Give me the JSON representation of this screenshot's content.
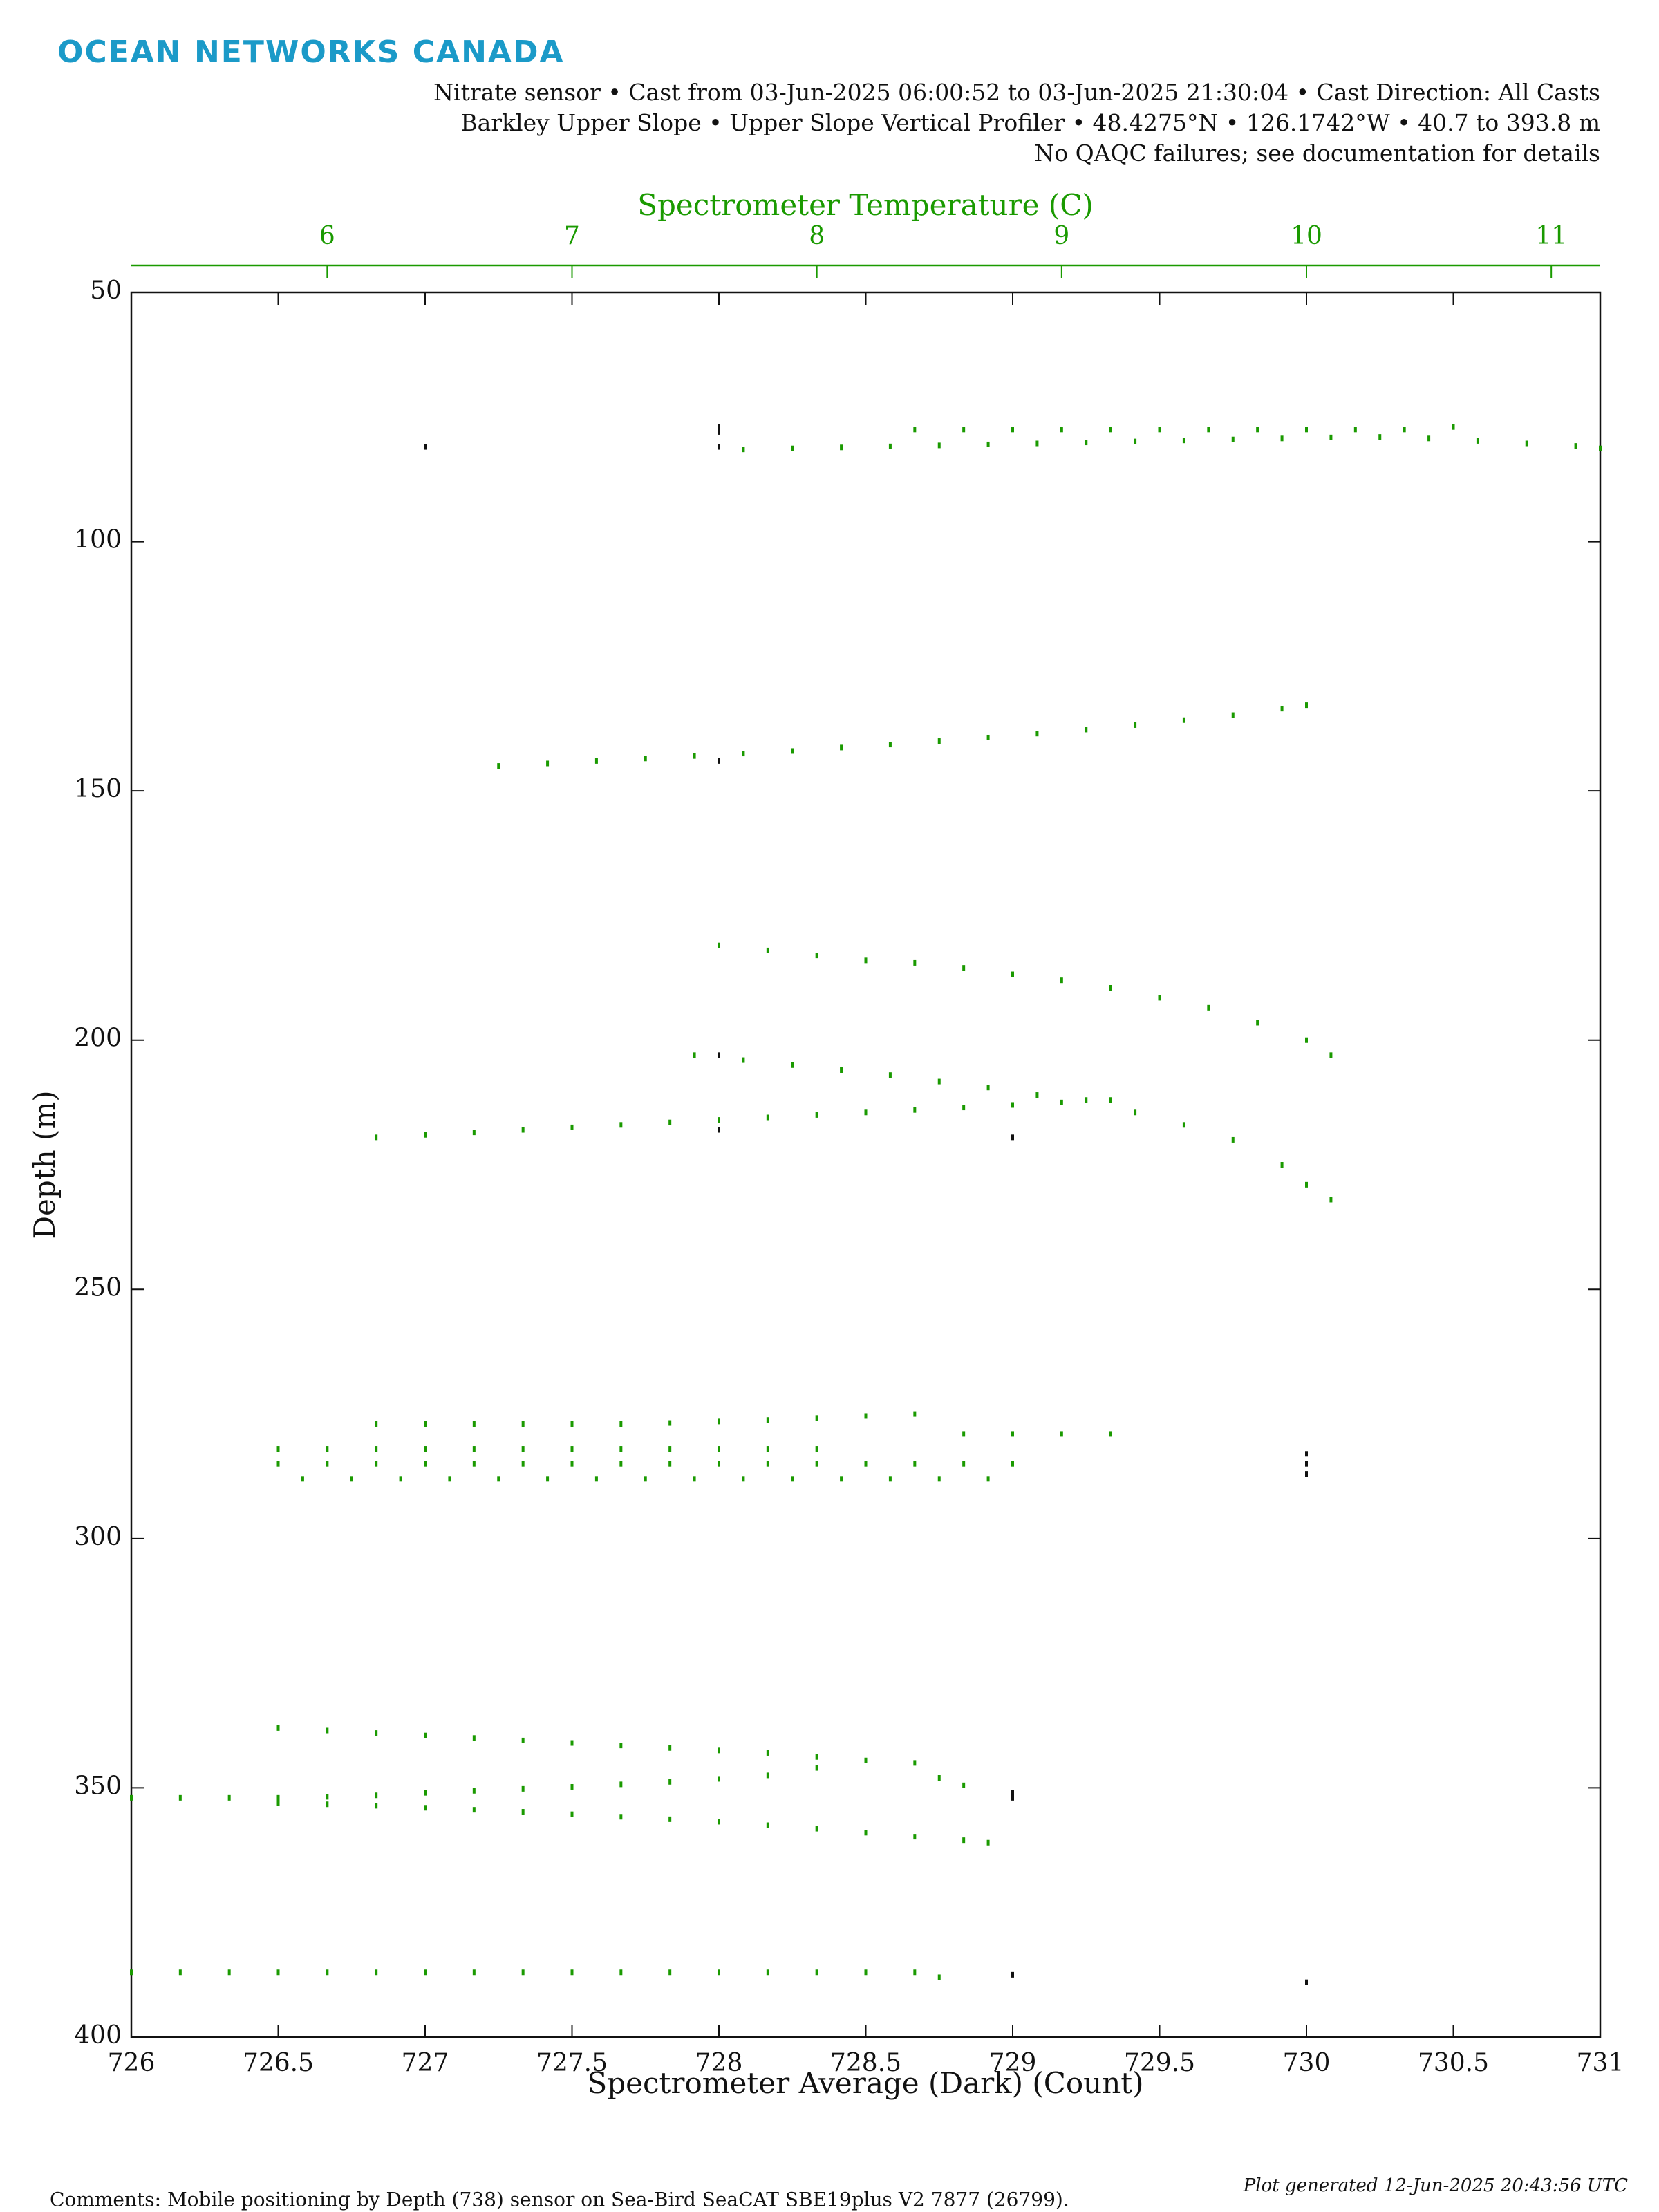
{
  "header": {
    "logo": "OCEAN NETWORKS CANADA",
    "lines": [
      "Nitrate sensor • Cast from 03-Jun-2025 06:00:52 to 03-Jun-2025 21:30:04 • Cast Direction: All Casts",
      "Barkley Upper Slope • Upper Slope Vertical Profiler • 48.4275°N • 126.1742°W • 40.7 to 393.8 m",
      "No QAQC failures; see documentation for details"
    ]
  },
  "chart_data": {
    "type": "scatter",
    "xlabel": "Spectrometer Average (Dark) (Count)",
    "x2label": "Spectrometer Temperature (C)",
    "ylabel": "Depth (m)",
    "xlim": [
      726,
      731
    ],
    "xticks": [
      726,
      726.5,
      727,
      727.5,
      728,
      728.5,
      729,
      729.5,
      730,
      730.5,
      731
    ],
    "x2lim": [
      5.2,
      11.2
    ],
    "x2ticks": [
      6,
      7,
      8,
      9,
      10,
      11
    ],
    "ylim": [
      50,
      400
    ],
    "yticks": [
      50,
      100,
      150,
      200,
      250,
      300,
      350,
      400
    ],
    "y_inverted": true,
    "x2color": "#1a9a00",
    "series": [
      {
        "color": "#111111",
        "x": [
          727,
          728,
          728,
          728,
          728,
          728,
          728,
          729,
          730,
          730,
          730,
          729,
          729,
          729,
          730
        ],
        "values": [
          81,
          77,
          78,
          81,
          144,
          203,
          218,
          219.5,
          283,
          285,
          287,
          351,
          352,
          387.5,
          389
        ]
      },
      {
        "color": "#1a9a00",
        "axis": "x2",
        "x": [
          7.7,
          7.9,
          8.1,
          8.3,
          8.5,
          8.7,
          8.9,
          9.1,
          9.3,
          9.5,
          9.7,
          9.9,
          10.1,
          10.3,
          10.5,
          10.7,
          10.9,
          11.1,
          11.2,
          8.4,
          8.6,
          8.8,
          9,
          9.2,
          9.4,
          9.6,
          9.8,
          10,
          10.2,
          10.4,
          10.6,
          6.7,
          6.9,
          7.1,
          7.3,
          7.5,
          7.7,
          7.9,
          8.1,
          8.3,
          8.5,
          8.7,
          8.9,
          9.1,
          9.3,
          9.5,
          9.7,
          9.9,
          10,
          7.6,
          7.8,
          8,
          8.2,
          8.4,
          8.6,
          8.8,
          9,
          9.2,
          9.4,
          9.6,
          9.8,
          10,
          10.1,
          7.5,
          7.7,
          7.9,
          8.1,
          8.3,
          8.5,
          8.7,
          8.9,
          9.1,
          9.3,
          9.5,
          9.7,
          9.9,
          10,
          10.1,
          6.2,
          6.4,
          6.6,
          6.8,
          7,
          7.2,
          7.4,
          7.6,
          7.8,
          8,
          8.2,
          8.4,
          8.6,
          8.8,
          9,
          9.2,
          6.2,
          6.4,
          6.6,
          6.8,
          7,
          7.2,
          7.4,
          7.6,
          7.8,
          8,
          8.2,
          8.4,
          8.6,
          8.8,
          9,
          9.2,
          5.8,
          6,
          6.2,
          6.4,
          6.6,
          6.8,
          7,
          7.2,
          7.4,
          7.6,
          7.8,
          8,
          8.2,
          8.4,
          8.6,
          8.8,
          5.9,
          6.1,
          6.3,
          6.5,
          6.7,
          6.9,
          7.1,
          7.3,
          7.5,
          7.7,
          7.9,
          8.1,
          8.3,
          8.5,
          8.7,
          5.8,
          6,
          6.2,
          6.4,
          6.6,
          6.8,
          7,
          7.2,
          7.4,
          7.6,
          7.8,
          8,
          5.8,
          6,
          6.2,
          6.4,
          6.6,
          6.8,
          7,
          7.2,
          7.4,
          7.6,
          7.8,
          8,
          8.2,
          8.4,
          8.5,
          8.6,
          5.2,
          5.4,
          5.6,
          5.8,
          6,
          6.2,
          6.4,
          6.6,
          6.8,
          7,
          7.2,
          7.4,
          7.6,
          7.8,
          8,
          5.8,
          6,
          6.2,
          6.4,
          6.6,
          6.8,
          7,
          7.2,
          7.4,
          7.6,
          7.8,
          8,
          8.2,
          8.4,
          8.6,
          8.7,
          5.2,
          5.4,
          5.6,
          5.8,
          6,
          6.2,
          6.4,
          6.6,
          6.8,
          7,
          7.2,
          7.4,
          7.6,
          7.8,
          8,
          8.2,
          8.4,
          8.5
        ],
        "values": [
          81.5,
          81.3,
          81.1,
          80.9,
          80.7,
          80.5,
          80.3,
          80.1,
          79.9,
          79.7,
          79.5,
          79.3,
          79.1,
          79,
          79.3,
          79.8,
          80.3,
          80.8,
          81.3,
          77.5,
          77.5,
          77.5,
          77.5,
          77.5,
          77.5,
          77.5,
          77.5,
          77.5,
          77.5,
          77.5,
          77,
          145,
          144.5,
          144,
          143.5,
          143,
          142.5,
          142,
          141.3,
          140.7,
          140,
          139.3,
          138.5,
          137.7,
          136.8,
          135.8,
          134.8,
          133.5,
          132.8,
          181,
          182,
          183,
          184,
          184.5,
          185.5,
          186.8,
          188,
          189.5,
          191.5,
          193.5,
          196.5,
          200,
          203,
          203,
          204,
          205,
          206,
          207,
          208.3,
          209.5,
          211,
          212,
          214.5,
          217,
          220,
          225,
          229,
          232,
          219.5,
          219,
          218.5,
          218,
          217.5,
          217,
          216.5,
          216,
          215.5,
          215,
          214.5,
          214,
          213.5,
          213,
          212.5,
          212,
          277,
          277,
          277,
          277,
          277,
          277,
          276.8,
          276.5,
          276.2,
          275.8,
          275.4,
          275,
          279,
          279,
          279,
          279,
          285,
          285,
          285,
          285,
          285,
          285,
          285,
          285,
          285,
          285,
          285,
          285,
          285,
          285,
          285,
          285,
          288,
          288,
          288,
          288,
          288,
          288,
          288,
          288,
          288,
          288,
          288,
          288,
          288,
          288,
          288,
          282,
          282,
          282,
          282,
          282,
          282,
          282,
          282,
          282,
          282,
          282,
          282,
          338,
          338.5,
          339,
          339.5,
          340,
          340.5,
          341,
          341.5,
          342,
          342.5,
          343,
          343.8,
          344.5,
          345,
          348,
          349.5,
          352,
          352,
          352,
          352,
          351.8,
          351.5,
          351,
          350.6,
          350.2,
          349.8,
          349.3,
          348.8,
          348.2,
          347.5,
          346,
          353,
          353.3,
          353.6,
          354,
          354.4,
          354.8,
          355.3,
          355.8,
          356.3,
          356.8,
          357.5,
          358.2,
          359,
          359.8,
          360.5,
          361,
          387,
          387,
          387,
          387,
          387,
          387,
          387,
          387,
          387,
          387,
          387,
          387,
          387,
          387,
          387,
          387,
          387,
          388
        ]
      }
    ]
  },
  "footer": {
    "comments": "Comments: Mobile positioning by Depth (738) sensor on Sea-Bird SeaCAT SBE19plus V2 7877 (26799).",
    "generated": "Plot generated 12-Jun-2025 20:43:56 UTC"
  }
}
